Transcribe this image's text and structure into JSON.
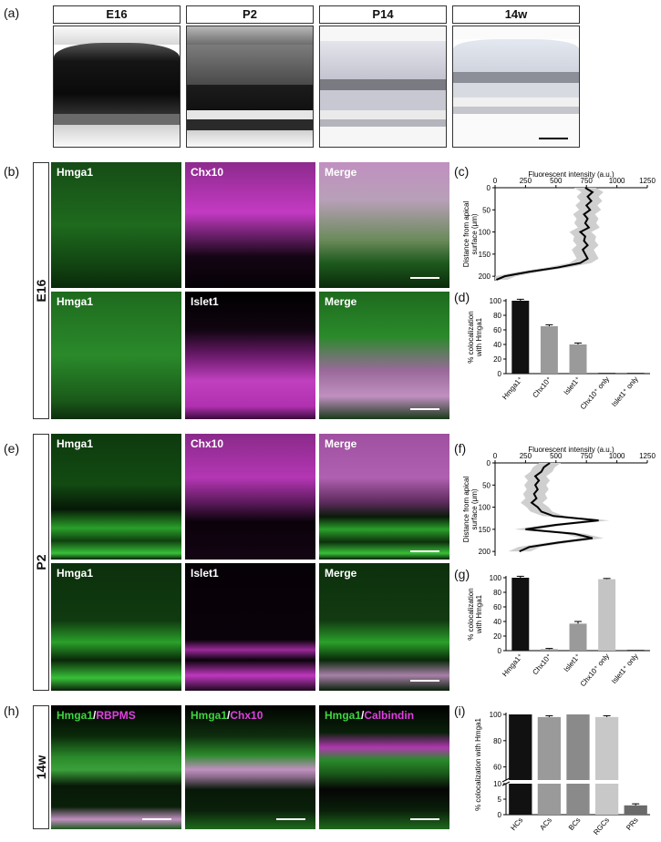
{
  "panels": {
    "a": "(a)",
    "b": "(b)",
    "c": "(c)",
    "d": "(d)",
    "e": "(e)",
    "f": "(f)",
    "g": "(g)",
    "h": "(h)",
    "i": "(i)"
  },
  "ish_stages": [
    "E16",
    "P2",
    "P14",
    "14w"
  ],
  "stage_labels": {
    "e16": "E16",
    "p2": "P2",
    "w14": "14w"
  },
  "fluor": {
    "e16_top": [
      "Hmga1",
      "Chx10",
      "Merge"
    ],
    "e16_bottom": [
      "Hmga1",
      "Islet1",
      "Merge"
    ],
    "p2_top": [
      "Hmga1",
      "Chx10",
      "Merge"
    ],
    "p2_bottom": [
      "Hmga1",
      "Islet1",
      "Merge"
    ],
    "w14": [
      {
        "green": "Hmga1",
        "sep": "/",
        "mag": "RBPMS"
      },
      {
        "green": "Hmga1",
        "sep": "/",
        "mag": "Chx10"
      },
      {
        "green": "Hmga1",
        "sep": "/",
        "mag": "Calbindin"
      }
    ]
  },
  "colors": {
    "green": "#39d23a",
    "magenta": "#e040e0",
    "dark_bar": "#111111",
    "gray1": "#9a9a9a",
    "gray2": "#c4c4c4",
    "gray3": "#e0e0e0"
  },
  "chart_data": [
    {
      "id": "c",
      "type": "line",
      "xlabel": "Fluorescent intensity (a.u.)",
      "ylabel_lines": [
        "Distance from apical",
        "surface (μm)"
      ],
      "xticks": [
        "0",
        "250",
        "500",
        "750",
        "1000",
        "1250"
      ],
      "yticks": [
        "0",
        "50",
        "100",
        "150",
        "200"
      ],
      "xlim": [
        0,
        1250
      ],
      "ylim": [
        0,
        210
      ],
      "y": [
        0,
        10,
        20,
        30,
        40,
        50,
        60,
        70,
        80,
        90,
        100,
        110,
        120,
        130,
        140,
        150,
        160,
        170,
        180,
        190,
        200,
        208
      ],
      "x": [
        740,
        800,
        760,
        790,
        750,
        780,
        730,
        760,
        740,
        770,
        700,
        740,
        730,
        760,
        720,
        740,
        760,
        700,
        520,
        280,
        80,
        10
      ]
    },
    {
      "id": "d",
      "type": "bar",
      "ylabel_lines": [
        "% colocalization",
        "with Hmga1"
      ],
      "yticks": [
        "0",
        "20",
        "40",
        "60",
        "80",
        "100"
      ],
      "ylim": [
        0,
        100
      ],
      "categories": [
        "Hmga1⁺",
        "Chx10⁺",
        "Islet1⁺",
        "Chx10⁺ only",
        "Islet1⁺ only"
      ],
      "values": [
        100,
        65,
        40,
        0,
        0
      ],
      "errors": [
        2,
        2,
        2,
        0,
        0
      ]
    },
    {
      "id": "f",
      "type": "line",
      "xlabel": "Fluorescent intensity (a.u.)",
      "ylabel_lines": [
        "Distance from apical",
        "surface (μm)"
      ],
      "xticks": [
        "0",
        "250",
        "500",
        "750",
        "1000",
        "1250"
      ],
      "yticks": [
        "0",
        "50",
        "100",
        "150",
        "200"
      ],
      "xlim": [
        0,
        1250
      ],
      "ylim": [
        0,
        210
      ],
      "y": [
        0,
        10,
        20,
        30,
        40,
        50,
        60,
        70,
        80,
        90,
        100,
        110,
        120,
        130,
        140,
        150,
        160,
        170,
        180,
        190,
        200
      ],
      "x": [
        450,
        400,
        380,
        330,
        360,
        330,
        350,
        320,
        340,
        300,
        350,
        380,
        480,
        850,
        500,
        250,
        650,
        800,
        520,
        280,
        200
      ]
    },
    {
      "id": "g",
      "type": "bar",
      "ylabel_lines": [
        "% colocalization",
        "with Hmga1"
      ],
      "yticks": [
        "0",
        "20",
        "40",
        "60",
        "80",
        "100"
      ],
      "ylim": [
        0,
        100
      ],
      "categories": [
        "Hmga1⁺",
        "Chx10⁺",
        "Islet1⁺",
        "Chx10⁺ only",
        "Islet1⁺ only"
      ],
      "values": [
        100,
        2,
        37,
        98,
        0
      ],
      "errors": [
        2,
        1,
        3,
        1,
        0
      ]
    },
    {
      "id": "i",
      "type": "bar",
      "ylabel": "% colocalization with Hmga1",
      "yticks": [
        "0",
        "5",
        "10",
        "60",
        "80",
        "100"
      ],
      "axis_break": [
        10,
        50
      ],
      "categories": [
        "HCs",
        "ACs",
        "BCs",
        "RGCs",
        "PRs"
      ],
      "values": [
        100,
        98,
        100,
        98,
        3
      ],
      "errors": [
        0,
        1,
        0,
        1,
        0.5
      ]
    }
  ]
}
